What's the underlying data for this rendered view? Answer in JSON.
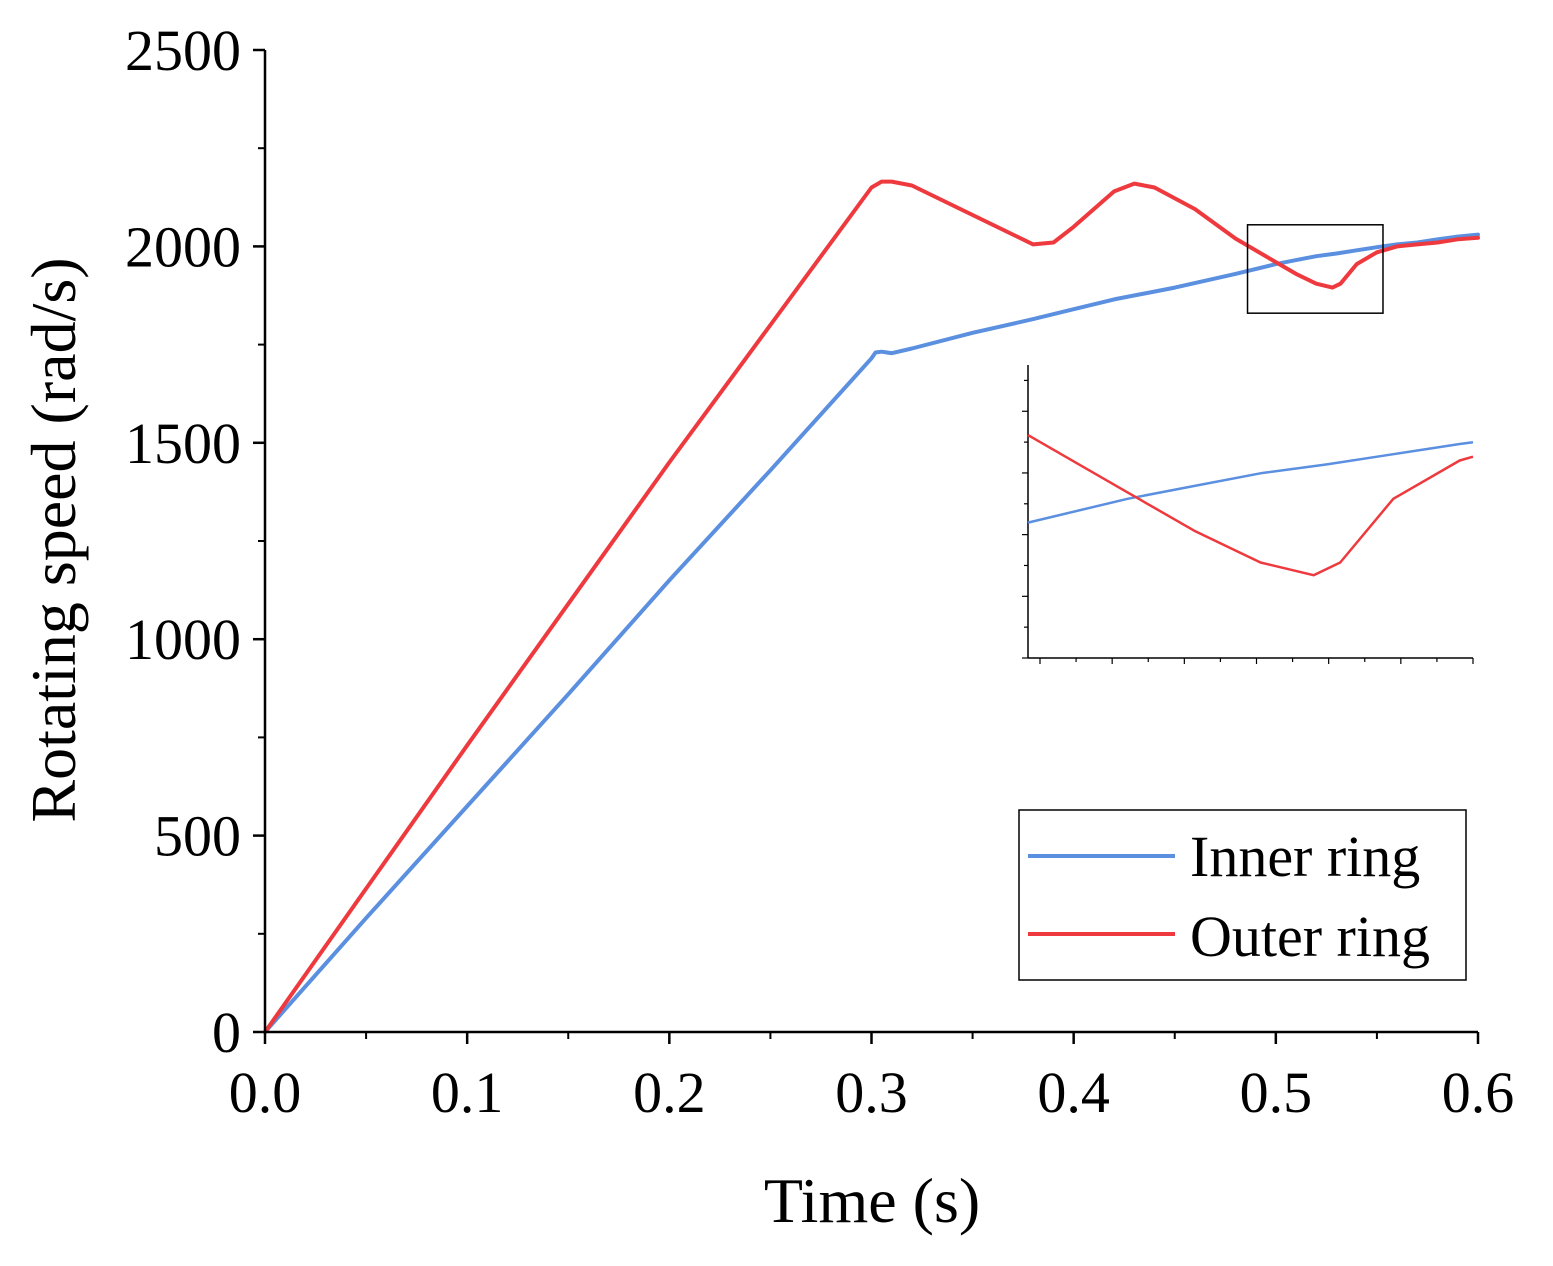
{
  "chart_data": {
    "type": "line",
    "title": "",
    "xlabel": "Time (s)",
    "ylabel": "Rotating speed (rad/s)",
    "xlim": [
      0,
      0.6
    ],
    "ylim": [
      0,
      2500
    ],
    "xticks": [
      0.0,
      0.1,
      0.2,
      0.3,
      0.4,
      0.5,
      0.6
    ],
    "xtick_labels": [
      "0.0",
      "0.1",
      "0.2",
      "0.3",
      "0.4",
      "0.5",
      "0.6"
    ],
    "yticks": [
      0,
      500,
      1000,
      1500,
      2000,
      2500
    ],
    "ytick_labels": [
      "0",
      "500",
      "1000",
      "1500",
      "2000",
      "2500"
    ],
    "grid": false,
    "legend_position": "bottom-right",
    "series": [
      {
        "name": "Inner ring",
        "color": "#5b8fe0",
        "x": [
          0,
          0.05,
          0.1,
          0.15,
          0.2,
          0.25,
          0.3,
          0.302,
          0.305,
          0.31,
          0.32,
          0.35,
          0.38,
          0.4,
          0.42,
          0.45,
          0.48,
          0.5,
          0.51,
          0.52,
          0.53,
          0.54,
          0.55,
          0.56,
          0.57,
          0.58,
          0.59,
          0.6
        ],
        "values": [
          0,
          290,
          575,
          860,
          1150,
          1430,
          1715,
          1730,
          1732,
          1728,
          1740,
          1780,
          1815,
          1840,
          1865,
          1895,
          1930,
          1955,
          1965,
          1975,
          1982,
          1990,
          1998,
          2005,
          2010,
          2018,
          2025,
          2030
        ]
      },
      {
        "name": "Outer ring",
        "color": "#ee3a3e",
        "x": [
          0,
          0.05,
          0.1,
          0.15,
          0.2,
          0.25,
          0.3,
          0.305,
          0.31,
          0.32,
          0.35,
          0.38,
          0.39,
          0.4,
          0.42,
          0.43,
          0.44,
          0.46,
          0.48,
          0.5,
          0.51,
          0.52,
          0.528,
          0.532,
          0.54,
          0.55,
          0.56,
          0.57,
          0.58,
          0.59,
          0.6
        ],
        "values": [
          0,
          365,
          730,
          1090,
          1450,
          1800,
          2150,
          2165,
          2165,
          2155,
          2080,
          2005,
          2010,
          2050,
          2140,
          2160,
          2150,
          2095,
          2020,
          1960,
          1930,
          1905,
          1895,
          1905,
          1955,
          1985,
          2000,
          2005,
          2010,
          2018,
          2022
        ]
      }
    ],
    "inset": {
      "description_free": true,
      "xlim": [
        0.485,
        0.552
      ],
      "ylim": [
        1830,
        2060
      ],
      "zoom_box": {
        "x": [
          0.486,
          0.553
        ],
        "y": [
          1830,
          2055
        ]
      }
    }
  }
}
